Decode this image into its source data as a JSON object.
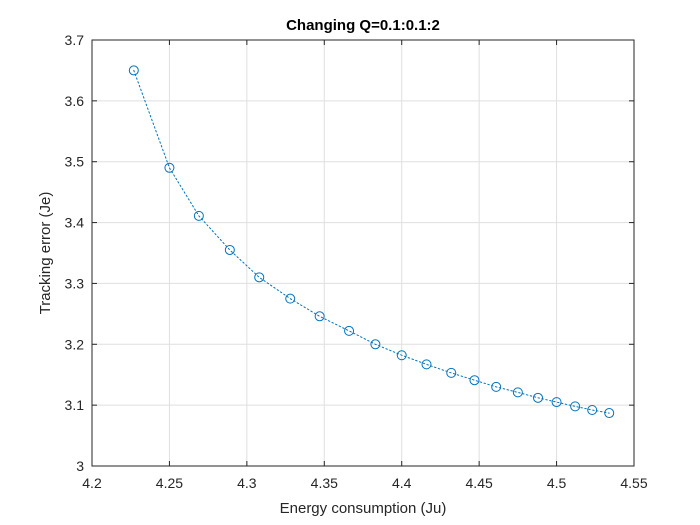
{
  "chart_data": {
    "type": "line",
    "title": "Changing Q=0.1:0.1:2",
    "xlabel": "Energy consumption (Ju)",
    "ylabel": "Tracking error (Je)",
    "xlim": [
      4.2,
      4.55
    ],
    "ylim": [
      3.0,
      3.7
    ],
    "xticks": [
      "4.2",
      "4.25",
      "4.3",
      "4.35",
      "4.4",
      "4.45",
      "4.5",
      "4.55"
    ],
    "yticks": [
      "3",
      "3.1",
      "3.2",
      "3.3",
      "3.4",
      "3.5",
      "3.6",
      "3.7"
    ],
    "grid": true,
    "marker": "circle",
    "line_style": "dotted",
    "color": "#0072bd",
    "series": [
      {
        "x": [
          4.227,
          4.25,
          4.269,
          4.289,
          4.308,
          4.328,
          4.347,
          4.366,
          4.383,
          4.4,
          4.416,
          4.432,
          4.447,
          4.461,
          4.475,
          4.488,
          4.5,
          4.512,
          4.523,
          4.534
        ],
        "y": [
          3.65,
          3.49,
          3.411,
          3.355,
          3.31,
          3.275,
          3.246,
          3.222,
          3.2,
          3.182,
          3.167,
          3.153,
          3.141,
          3.13,
          3.121,
          3.112,
          3.105,
          3.098,
          3.092,
          3.087
        ]
      }
    ]
  }
}
